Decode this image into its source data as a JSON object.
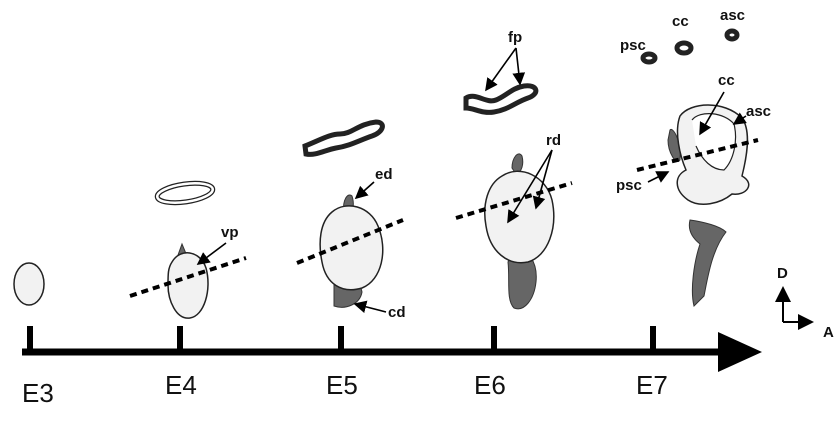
{
  "stages": [
    "E3",
    "E4",
    "E5",
    "E6",
    "E7"
  ],
  "annotations": {
    "vp": "vp",
    "ed": "ed",
    "cd": "cd",
    "fp": "fp",
    "rd": "rd",
    "psc_top": "psc",
    "cc_top": "cc",
    "asc_top": "asc",
    "cc": "cc",
    "asc": "asc",
    "psc": "psc"
  },
  "axes": {
    "dorsal": "D",
    "anterior": "A"
  }
}
